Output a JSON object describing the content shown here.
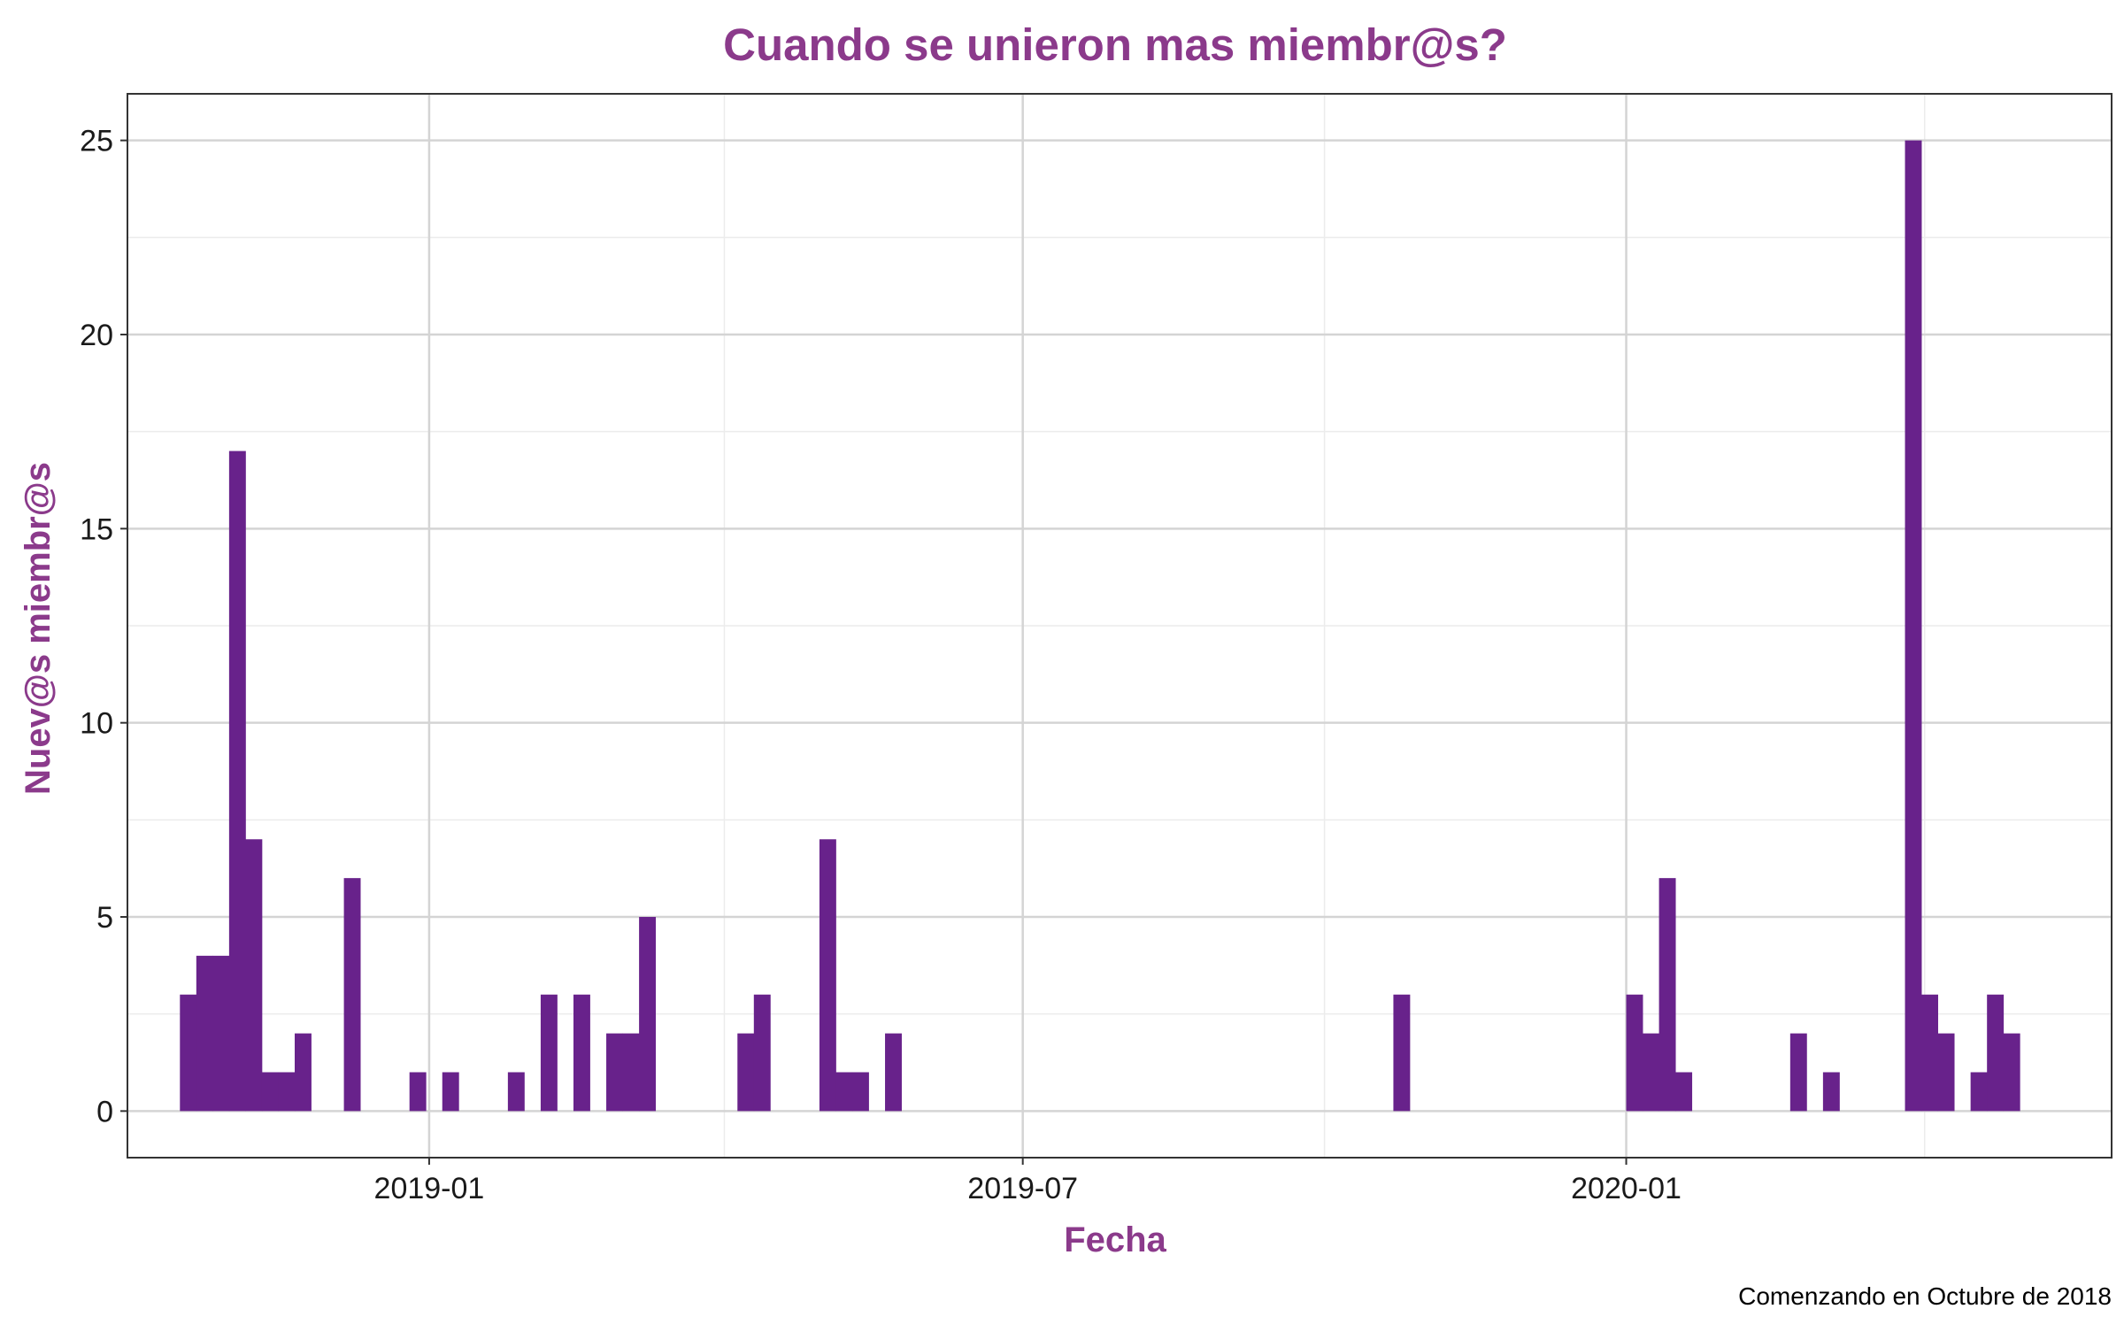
{
  "chart_data": {
    "type": "bar",
    "title": "Cuando se unieron mas miembr@s?",
    "xlabel": "Fecha",
    "ylabel": "Nuev@s miembr@s",
    "caption": "Comenzando en Octubre de 2018",
    "x_axis": {
      "type": "date",
      "range": [
        "2018-10-01",
        "2020-05-28"
      ],
      "ticks": [
        {
          "date": "2019-01-01",
          "label": "2019-01"
        },
        {
          "date": "2019-07-01",
          "label": "2019-07"
        },
        {
          "date": "2020-01-01",
          "label": "2020-01"
        }
      ],
      "minor_ticks": [
        "2018-10-01",
        "2019-04-01",
        "2019-10-01",
        "2020-04-01"
      ]
    },
    "y_axis": {
      "range": [
        -1.2,
        26.2
      ],
      "ticks": [
        0,
        5,
        10,
        15,
        20,
        25
      ]
    },
    "grid": true,
    "bin_width_days": 5,
    "bins": [
      {
        "start": "2018-10-17",
        "value": 3
      },
      {
        "start": "2018-10-22",
        "value": 4
      },
      {
        "start": "2018-10-27",
        "value": 4
      },
      {
        "start": "2018-11-01",
        "value": 17
      },
      {
        "start": "2018-11-06",
        "value": 7
      },
      {
        "start": "2018-11-11",
        "value": 1
      },
      {
        "start": "2018-11-16",
        "value": 1
      },
      {
        "start": "2018-11-21",
        "value": 2
      },
      {
        "start": "2018-12-06",
        "value": 6
      },
      {
        "start": "2018-12-26",
        "value": 1
      },
      {
        "start": "2019-01-05",
        "value": 1
      },
      {
        "start": "2019-01-25",
        "value": 1
      },
      {
        "start": "2019-02-04",
        "value": 3
      },
      {
        "start": "2019-02-14",
        "value": 3
      },
      {
        "start": "2019-02-24",
        "value": 2
      },
      {
        "start": "2019-03-01",
        "value": 2
      },
      {
        "start": "2019-03-06",
        "value": 5
      },
      {
        "start": "2019-04-05",
        "value": 2
      },
      {
        "start": "2019-04-10",
        "value": 3
      },
      {
        "start": "2019-04-30",
        "value": 7
      },
      {
        "start": "2019-05-05",
        "value": 1
      },
      {
        "start": "2019-05-10",
        "value": 1
      },
      {
        "start": "2019-05-20",
        "value": 2
      },
      {
        "start": "2019-10-22",
        "value": 3
      },
      {
        "start": "2020-01-01",
        "value": 3
      },
      {
        "start": "2020-01-06",
        "value": 2
      },
      {
        "start": "2020-01-11",
        "value": 6
      },
      {
        "start": "2020-01-16",
        "value": 1
      },
      {
        "start": "2020-02-20",
        "value": 2
      },
      {
        "start": "2020-03-01",
        "value": 1
      },
      {
        "start": "2020-03-26",
        "value": 25
      },
      {
        "start": "2020-03-31",
        "value": 3
      },
      {
        "start": "2020-04-05",
        "value": 2
      },
      {
        "start": "2020-04-15",
        "value": 1
      },
      {
        "start": "2020-04-20",
        "value": 3
      },
      {
        "start": "2020-04-25",
        "value": 2
      }
    ],
    "colors": {
      "bar": "#68228b",
      "title": "#8b3a8b",
      "grid_major": "#d4d4d4",
      "grid_minor": "#ececec",
      "panel_border": "#333333"
    }
  }
}
